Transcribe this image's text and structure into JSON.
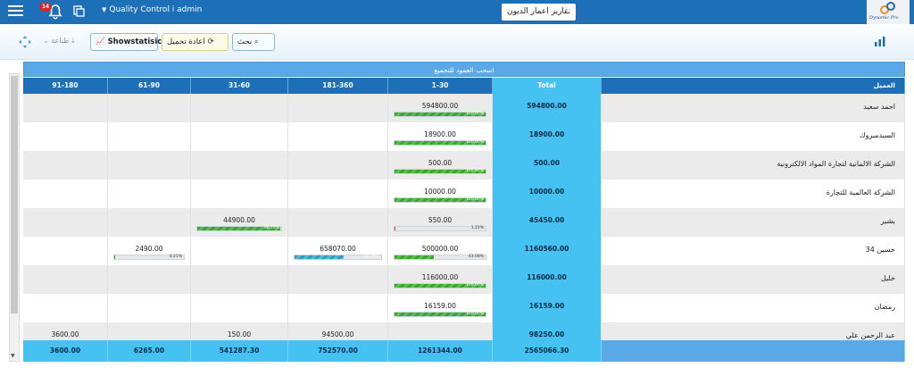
{
  "header": {
    "notification_count": "14",
    "user_label": "Quality Control i admin",
    "report_tab": "تقارير اعمار الديون",
    "tab_close": "x",
    "logo_text": "Dynamic Pro"
  },
  "toolbar": {
    "search_label": "بحث",
    "reload_label": "اعادة تحميل",
    "stat_label": "Showstatisic",
    "print_label": "طباعة"
  },
  "grid": {
    "group_hint": "اسحب العمود للتجميع",
    "columns": {
      "client": "العميل",
      "total": "Total",
      "c1": "1-30",
      "c2": "181-360",
      "c3": "31-60",
      "c4": "61-90",
      "c5": "91-180"
    },
    "rows": [
      {
        "client": "احمد سعيد",
        "total": "594800.00",
        "c1": "594800.00",
        "c1_pct": "100.00%",
        "c1_fill": 100
      },
      {
        "client": "السيدمبروك",
        "total": "18900.00",
        "c1": "18900.00",
        "c1_pct": "100.00%",
        "c1_fill": 100
      },
      {
        "client": "الشركة الالمانية لتجارة المواد الالكترونية",
        "total": "500.00",
        "c1": "500.00",
        "c1_pct": "100.00%",
        "c1_fill": 100
      },
      {
        "client": "الشركة العالمية للتجارة",
        "total": "10000.00",
        "c1": "10000.00",
        "c1_pct": "100.00%",
        "c1_fill": 100
      },
      {
        "client": "بشير",
        "total": "45450.00",
        "c1": "550.00",
        "c1_pct": "1.21%",
        "c1_fill": 1.21,
        "c3": "44900.00",
        "c3_pct": "98.79%",
        "c3_fill": 98.79
      },
      {
        "client": "حسين 34",
        "total": "1160560.00",
        "c1": "500000.00",
        "c1_pct": "43.08%",
        "c1_fill": 43.08,
        "c2": "658070.00",
        "c2_pct": "56.70%",
        "c2_fill": 56.7,
        "c4": "2490.00",
        "c4_pct": "0.21%",
        "c4_fill": 0.21
      },
      {
        "client": "خليل",
        "total": "116000.00",
        "c1": "116000.00",
        "c1_pct": "100.00%",
        "c1_fill": 100
      },
      {
        "client": "رمضان",
        "total": "16159.00",
        "c1": "16159.00",
        "c1_pct": "100.00%",
        "c1_fill": 100
      },
      {
        "client": "عبد الرحمن علي",
        "total": "98250.00",
        "c2": "94500.00",
        "c3": "150.00",
        "c5": "3600.00"
      }
    ],
    "totals": {
      "total": "2565066.30",
      "c1": "1261344.00",
      "c2": "752570.00",
      "c3": "541287.30",
      "c4": "6265.00",
      "c5": "3600.00"
    }
  }
}
